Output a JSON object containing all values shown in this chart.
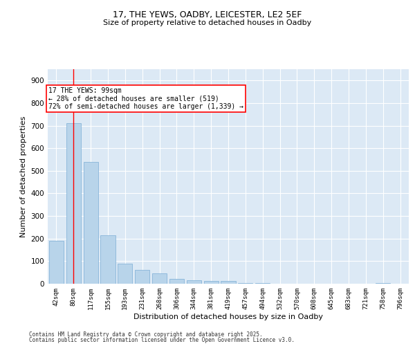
{
  "title_line1": "17, THE YEWS, OADBY, LEICESTER, LE2 5EF",
  "title_line2": "Size of property relative to detached houses in Oadby",
  "xlabel": "Distribution of detached houses by size in Oadby",
  "ylabel": "Number of detached properties",
  "categories": [
    "42sqm",
    "80sqm",
    "117sqm",
    "155sqm",
    "193sqm",
    "231sqm",
    "268sqm",
    "306sqm",
    "344sqm",
    "381sqm",
    "419sqm",
    "457sqm",
    "494sqm",
    "532sqm",
    "570sqm",
    "608sqm",
    "645sqm",
    "683sqm",
    "721sqm",
    "758sqm",
    "796sqm"
  ],
  "values": [
    190,
    710,
    540,
    215,
    90,
    60,
    45,
    20,
    15,
    13,
    13,
    3,
    3,
    0,
    0,
    0,
    0,
    0,
    0,
    3,
    0
  ],
  "bar_color": "#b8d4ea",
  "bar_edge_color": "#7aadd4",
  "annotation_text": "17 THE YEWS: 99sqm\n← 28% of detached houses are smaller (519)\n72% of semi-detached houses are larger (1,339) →",
  "annotation_box_color": "white",
  "annotation_box_edge_color": "red",
  "property_line_x": 1.0,
  "ylim": [
    0,
    950
  ],
  "yticks": [
    0,
    100,
    200,
    300,
    400,
    500,
    600,
    700,
    800,
    900
  ],
  "bg_color": "#dce9f5",
  "grid_color": "white",
  "footer_line1": "Contains HM Land Registry data © Crown copyright and database right 2025.",
  "footer_line2": "Contains public sector information licensed under the Open Government Licence v3.0."
}
